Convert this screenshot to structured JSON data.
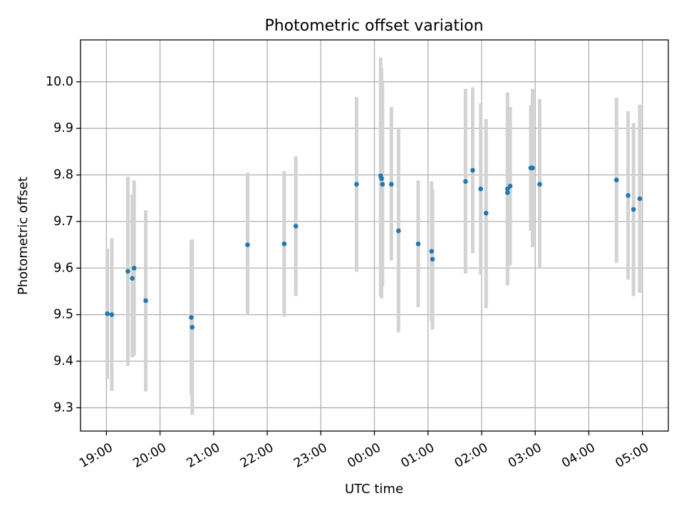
{
  "chart_data": {
    "type": "scatter",
    "title": "Photometric offset variation",
    "xlabel": "UTC time",
    "ylabel": "Photometric offset",
    "xlim": [
      "18:31",
      "05:29"
    ],
    "ylim": [
      9.25,
      10.09
    ],
    "grid": true,
    "marker_color": "#1f77b4",
    "errorbar_color": "#d3d3d3",
    "x_ticks": [
      "19:00",
      "20:00",
      "21:00",
      "22:00",
      "23:00",
      "00:00",
      "01:00",
      "02:00",
      "03:00",
      "04:00",
      "05:00"
    ],
    "y_ticks": [
      "9.3",
      "9.4",
      "9.5",
      "9.6",
      "9.7",
      "9.8",
      "9.9",
      "10.0"
    ],
    "points": [
      {
        "x": "19:01",
        "y": 9.502,
        "low": 9.362,
        "high": 9.642
      },
      {
        "x": "19:06",
        "y": 9.5,
        "low": 9.336,
        "high": 9.664
      },
      {
        "x": "19:24",
        "y": 9.593,
        "low": 9.39,
        "high": 9.796
      },
      {
        "x": "19:29",
        "y": 9.578,
        "low": 9.408,
        "high": 9.758
      },
      {
        "x": "19:31",
        "y": 9.6,
        "low": 9.412,
        "high": 9.788
      },
      {
        "x": "19:44",
        "y": 9.53,
        "low": 9.335,
        "high": 9.724
      },
      {
        "x": "20:35",
        "y": 9.494,
        "low": 9.328,
        "high": 9.66
      },
      {
        "x": "20:36",
        "y": 9.473,
        "low": 9.285,
        "high": 9.662
      },
      {
        "x": "21:38",
        "y": 9.65,
        "low": 9.5,
        "high": 9.805
      },
      {
        "x": "22:19",
        "y": 9.652,
        "low": 9.496,
        "high": 9.808
      },
      {
        "x": "22:32",
        "y": 9.69,
        "low": 9.54,
        "high": 9.84
      },
      {
        "x": "23:40",
        "y": 9.78,
        "low": 9.592,
        "high": 9.967
      },
      {
        "x": "00:07",
        "y": 9.798,
        "low": 9.54,
        "high": 10.052
      },
      {
        "x": "00:08",
        "y": 9.792,
        "low": 9.535,
        "high": 10.03
      },
      {
        "x": "00:09",
        "y": 9.78,
        "low": 9.56,
        "high": 9.998
      },
      {
        "x": "00:19",
        "y": 9.78,
        "low": 9.616,
        "high": 9.946
      },
      {
        "x": "00:27",
        "y": 9.68,
        "low": 9.462,
        "high": 9.898
      },
      {
        "x": "00:49",
        "y": 9.652,
        "low": 9.516,
        "high": 9.788
      },
      {
        "x": "01:04",
        "y": 9.636,
        "low": 9.486,
        "high": 9.786
      },
      {
        "x": "01:05",
        "y": 9.619,
        "low": 9.468,
        "high": 9.77
      },
      {
        "x": "01:42",
        "y": 9.786,
        "low": 9.588,
        "high": 9.985
      },
      {
        "x": "01:50",
        "y": 9.81,
        "low": 9.632,
        "high": 9.988
      },
      {
        "x": "01:59",
        "y": 9.77,
        "low": 9.585,
        "high": 9.954
      },
      {
        "x": "02:05",
        "y": 9.718,
        "low": 9.514,
        "high": 9.92
      },
      {
        "x": "02:29",
        "y": 9.77,
        "low": 9.563,
        "high": 9.977
      },
      {
        "x": "02:29",
        "y": 9.762,
        "low": 9.58,
        "high": 9.96
      },
      {
        "x": "02:32",
        "y": 9.776,
        "low": 9.606,
        "high": 9.946
      },
      {
        "x": "02:55",
        "y": 9.815,
        "low": 9.68,
        "high": 9.95
      },
      {
        "x": "02:57",
        "y": 9.815,
        "low": 9.645,
        "high": 9.985
      },
      {
        "x": "03:05",
        "y": 9.78,
        "low": 9.598,
        "high": 9.963
      },
      {
        "x": "04:31",
        "y": 9.789,
        "low": 9.611,
        "high": 9.966
      },
      {
        "x": "04:44",
        "y": 9.756,
        "low": 9.575,
        "high": 9.937
      },
      {
        "x": "04:50",
        "y": 9.726,
        "low": 9.54,
        "high": 9.912
      },
      {
        "x": "04:57",
        "y": 9.749,
        "low": 9.547,
        "high": 9.951
      }
    ]
  }
}
